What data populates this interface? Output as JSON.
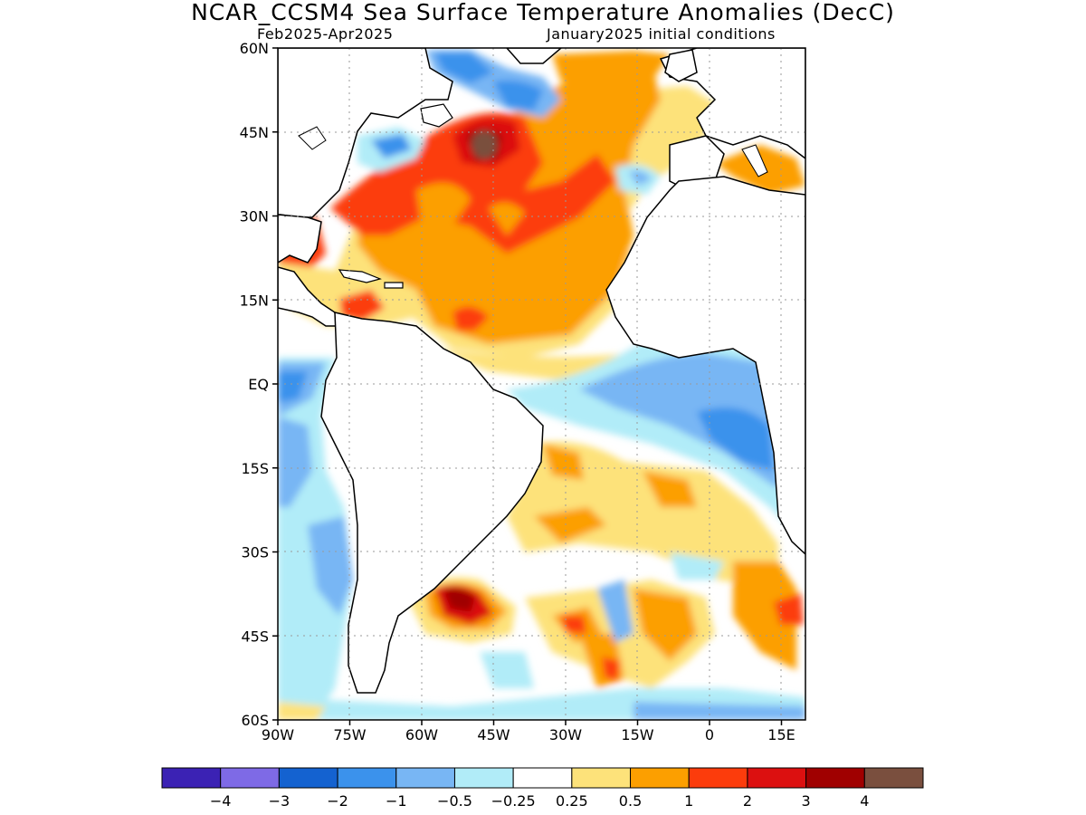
{
  "title": "NCAR_CCSM4 Sea Surface Temperature Anomalies (DecC)",
  "subtitle_left": "Feb2025-Apr2025",
  "subtitle_right": "January2025 initial conditions",
  "map": {
    "lon_range": [
      -90,
      20
    ],
    "lat_range": [
      -60,
      60
    ],
    "grid_lines": true,
    "lat_ticks": [
      {
        "value": 60,
        "label": "60N"
      },
      {
        "value": 45,
        "label": "45N"
      },
      {
        "value": 30,
        "label": "30N"
      },
      {
        "value": 15,
        "label": "15N"
      },
      {
        "value": 0,
        "label": "EQ"
      },
      {
        "value": -15,
        "label": "15S"
      },
      {
        "value": -30,
        "label": "30S"
      },
      {
        "value": -45,
        "label": "45S"
      },
      {
        "value": -60,
        "label": "60S"
      }
    ],
    "lon_ticks": [
      {
        "value": -90,
        "label": "90W"
      },
      {
        "value": -75,
        "label": "75W"
      },
      {
        "value": -60,
        "label": "60W"
      },
      {
        "value": -45,
        "label": "45W"
      },
      {
        "value": -30,
        "label": "30W"
      },
      {
        "value": -15,
        "label": "15W"
      },
      {
        "value": 0,
        "label": "0"
      },
      {
        "value": 15,
        "label": "15E"
      }
    ]
  },
  "legend": {
    "colors": [
      "#3b22b4",
      "#7e6ae6",
      "#1462d0",
      "#3b92ec",
      "#78b6f4",
      "#b1ecf8",
      "#ffffff",
      "#fde27a",
      "#fc9f00",
      "#fc3c0c",
      "#dc1010",
      "#a00000",
      "#7a4f3e"
    ],
    "labels": [
      "−4",
      "−3",
      "−2",
      "−1",
      "−0.5",
      "−0.25",
      "0.25",
      "0.5",
      "1",
      "2",
      "3",
      "4"
    ]
  }
}
